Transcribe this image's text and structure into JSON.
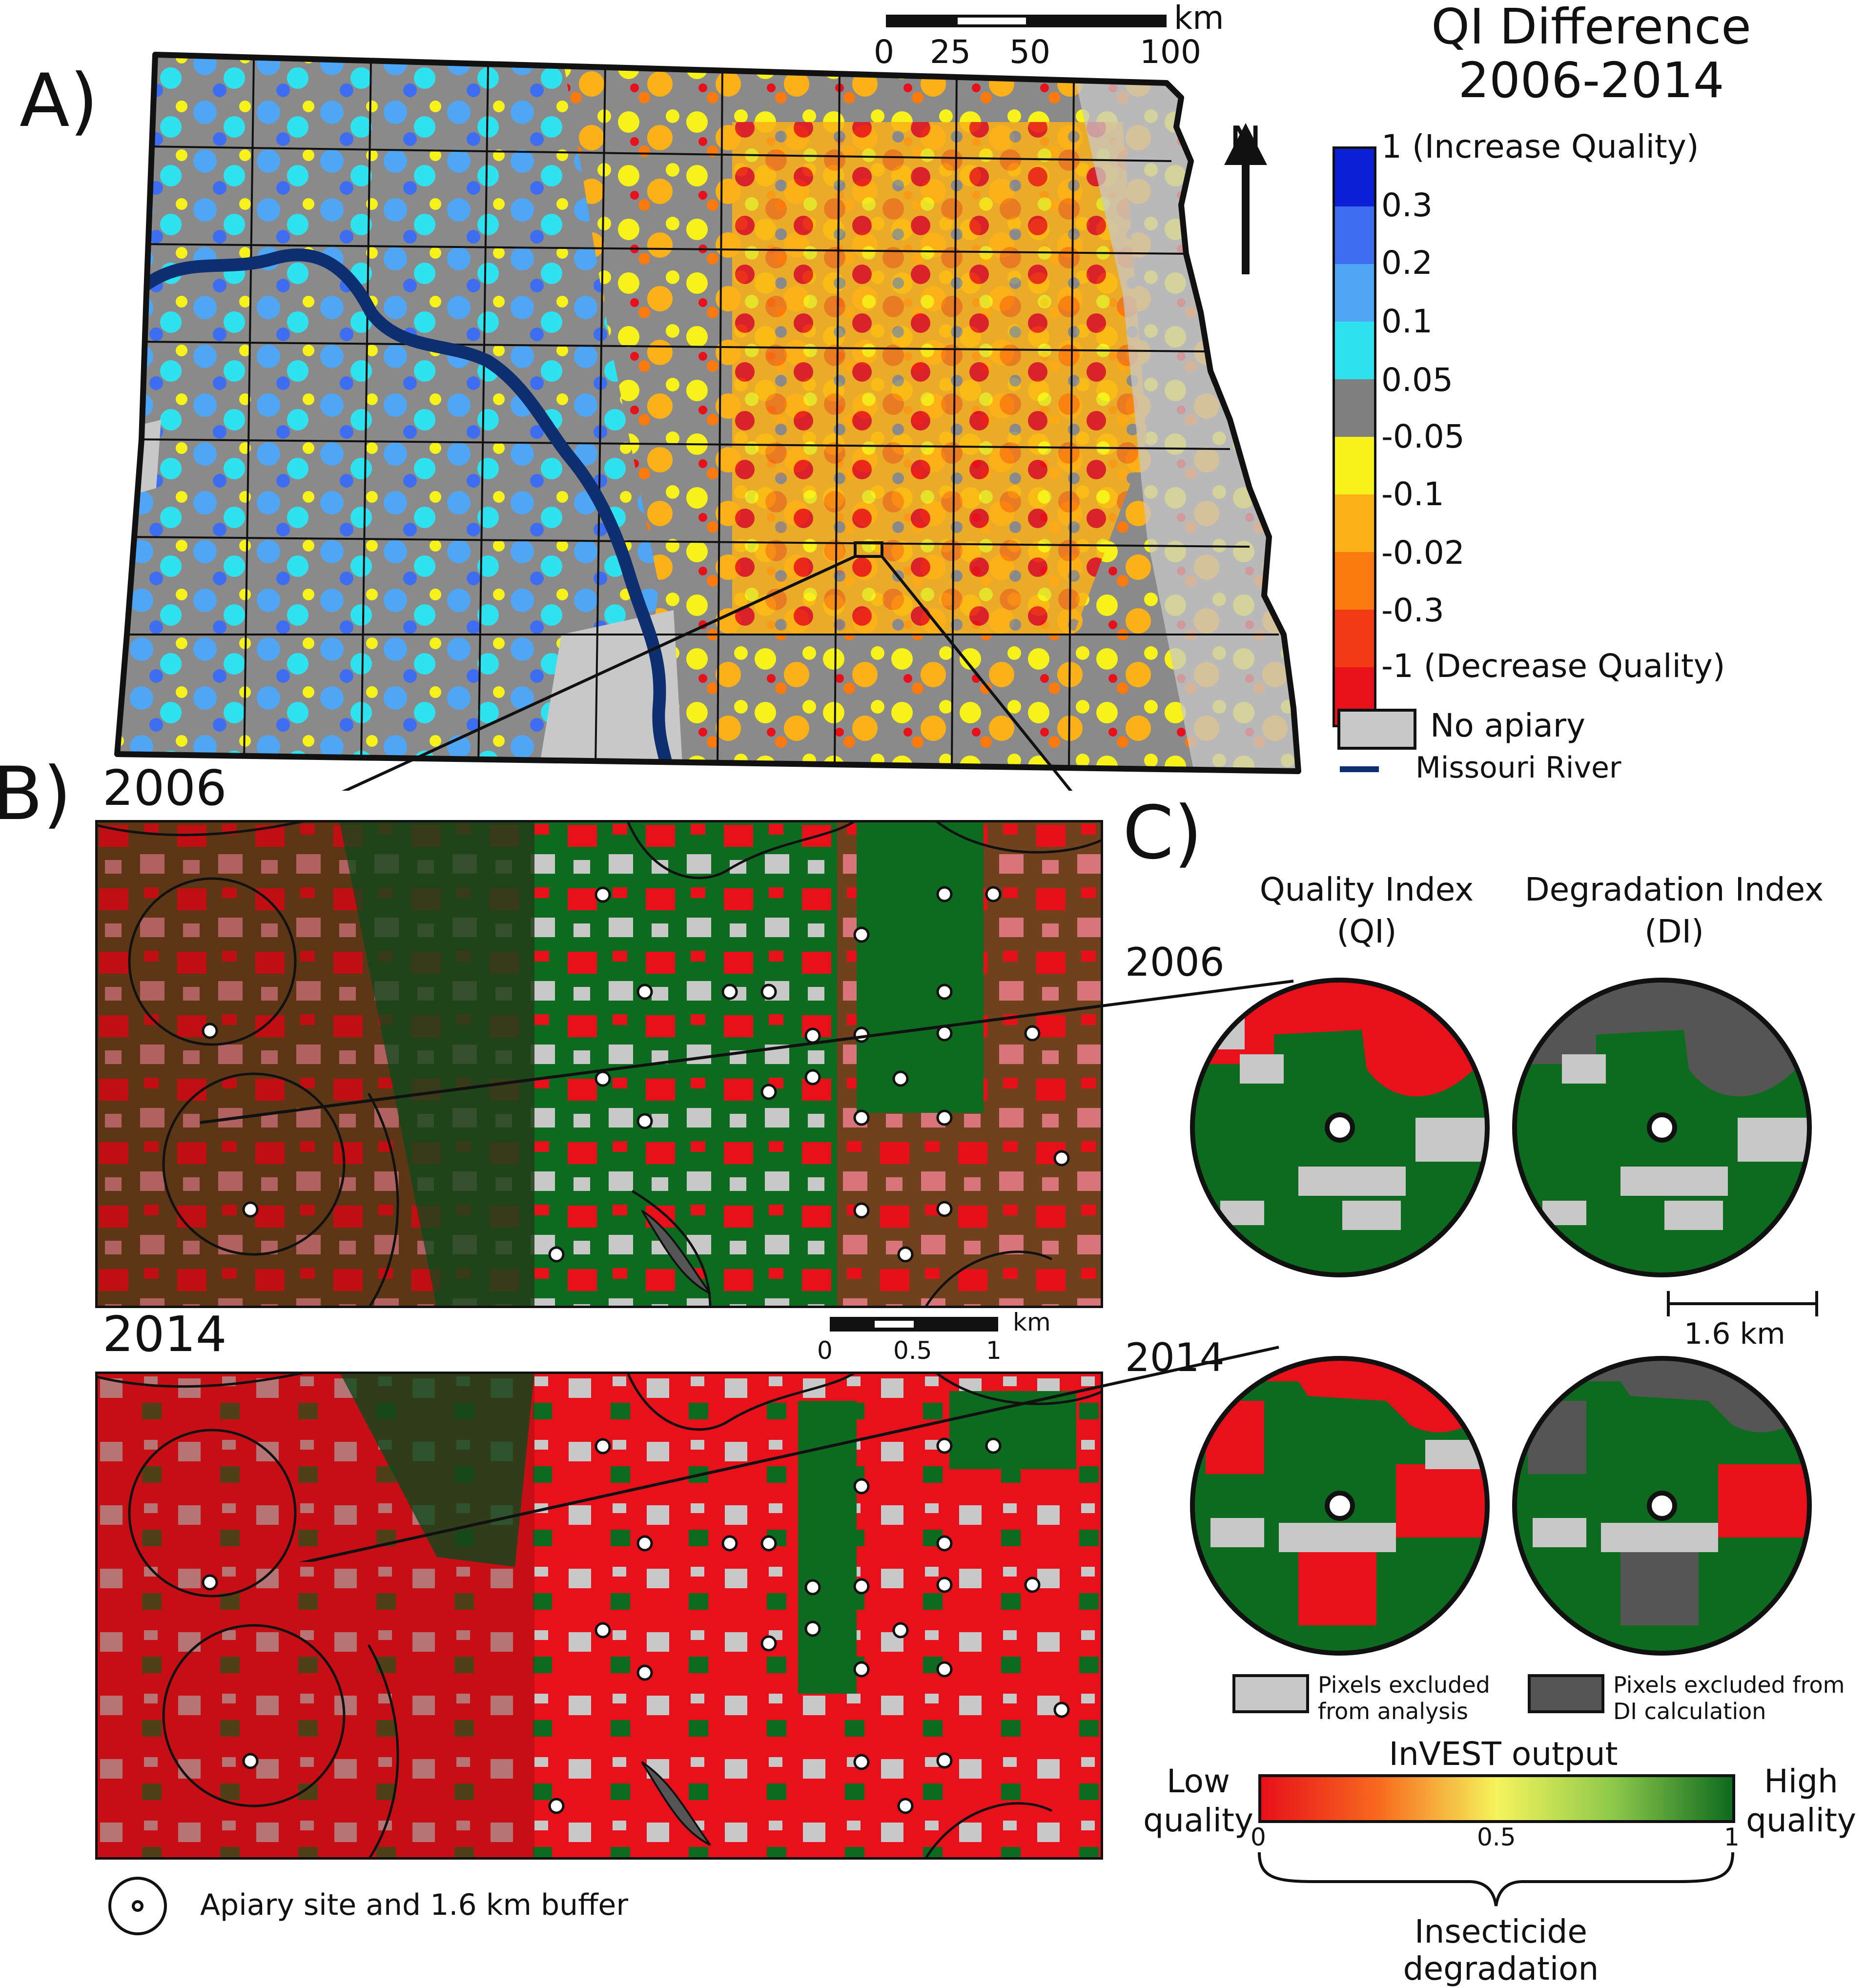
{
  "panel_labels": {
    "a": "A)",
    "b": "B)",
    "c": "C)"
  },
  "map_scale": {
    "unit": "km",
    "ticks": [
      "0",
      "25",
      "50",
      "100"
    ]
  },
  "north_label": "N",
  "qi_legend": {
    "title_line1": "QI Difference",
    "title_line2": "2006-2014",
    "classes": [
      {
        "label": "1 (Increase Quality)",
        "color": "#0a1fd6"
      },
      {
        "label": "0.3",
        "color": "#3d6df0"
      },
      {
        "label": "0.2",
        "color": "#4fa6f5"
      },
      {
        "label": "0.1",
        "color": "#2ee3ef"
      },
      {
        "label": "0.05",
        "color": "#7f7f7f"
      },
      {
        "label": "-0.05",
        "color": "#f6f21a"
      },
      {
        "label": "-0.1",
        "color": "#fbb117"
      },
      {
        "label": "-0.02",
        "color": "#fa7a10"
      },
      {
        "label": "-0.3",
        "color": "#f23a14"
      },
      {
        "label": "-1 (Decrease Quality)",
        "color": "#e8101a"
      }
    ],
    "no_apiary": "No apiary",
    "river": "Missouri River"
  },
  "panel_b": {
    "year_top": "2006",
    "year_bottom": "2014",
    "scale_unit": "km",
    "scale_ticks": [
      "0",
      "0.5",
      "1"
    ],
    "apiary_legend": "Apiary site and 1.6 km buffer"
  },
  "panel_c": {
    "col1_line1": "Quality Index",
    "col1_line2": "(QI)",
    "col2_line1": "Degradation Index",
    "col2_line2": "(DI)",
    "year_top": "2006",
    "year_bottom": "2014",
    "scale_label": "1.6 km",
    "excl_analysis_1": "Pixels excluded",
    "excl_analysis_2": "from analysis",
    "excl_di_1": "Pixels excluded from",
    "excl_di_2": "DI calculation",
    "invest_title": "InVEST output",
    "low_1": "Low",
    "low_2": "quality",
    "high_1": "High",
    "high_2": "quality",
    "ticks": [
      "0",
      "0.5",
      "1"
    ],
    "brace_1": "Insecticide",
    "brace_2": "degradation"
  },
  "colors": {
    "red": "#e8101a",
    "dark_green": "#0d6b1f",
    "darker_green": "#0b4a1b",
    "dark_red": "#a00d0d",
    "light_gray": "#c8c8c8",
    "dark_gray": "#555555",
    "river": "#0d2f70"
  }
}
